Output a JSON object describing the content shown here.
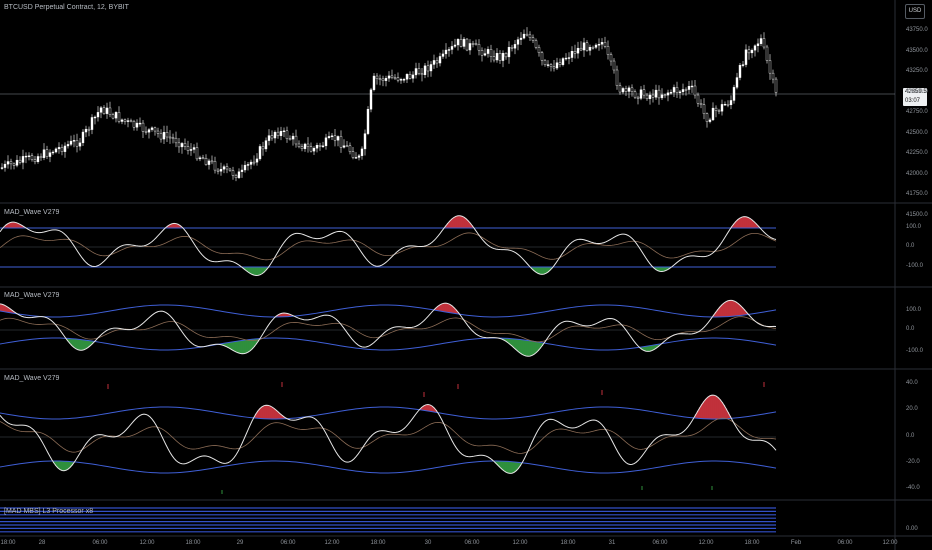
{
  "chart_title": "BTCUSD Perpetual Contract, 12, BYBIT",
  "currency": "USD",
  "price_tag": {
    "price": "42859.5",
    "countdown": "03:07"
  },
  "price_axis_labels": [
    "43750.0",
    "43500.0",
    "43250.0",
    "43000.0",
    "42750.0",
    "42500.0",
    "42250.0",
    "42000.0",
    "41750.0",
    "41500.0"
  ],
  "panels": [
    {
      "title": "MAD_Wave V279",
      "labels": [
        "100.0",
        "0.0",
        "-100.0"
      ]
    },
    {
      "title": "MAD_Wave V279",
      "labels": [
        "100.0",
        "0.0",
        "-100.0"
      ]
    },
    {
      "title": "MAD_Wave V279",
      "labels": [
        "40.0",
        "20.0",
        "0.0",
        "-20.0",
        "-40.0"
      ]
    },
    {
      "title": "[MAD MBS] L3 Processor x8",
      "labels": [
        "0.00"
      ]
    }
  ],
  "time_labels": [
    "18:00",
    "28",
    "06:00",
    "12:00",
    "18:00",
    "29",
    "06:00",
    "12:00",
    "18:00",
    "30",
    "06:00",
    "12:00",
    "18:00",
    "31",
    "06:00",
    "12:00",
    "18:00",
    "Feb",
    "06:00",
    "12:00"
  ],
  "colors": {
    "price_candles": "#ffffff",
    "band_line": "#3f5fd6",
    "overbought_fill": "#c0313b",
    "oversold_fill": "#2f8f3d",
    "oscillator": "#e6e6e6",
    "slow_line": "#8a6b55",
    "background": "#000000"
  }
}
